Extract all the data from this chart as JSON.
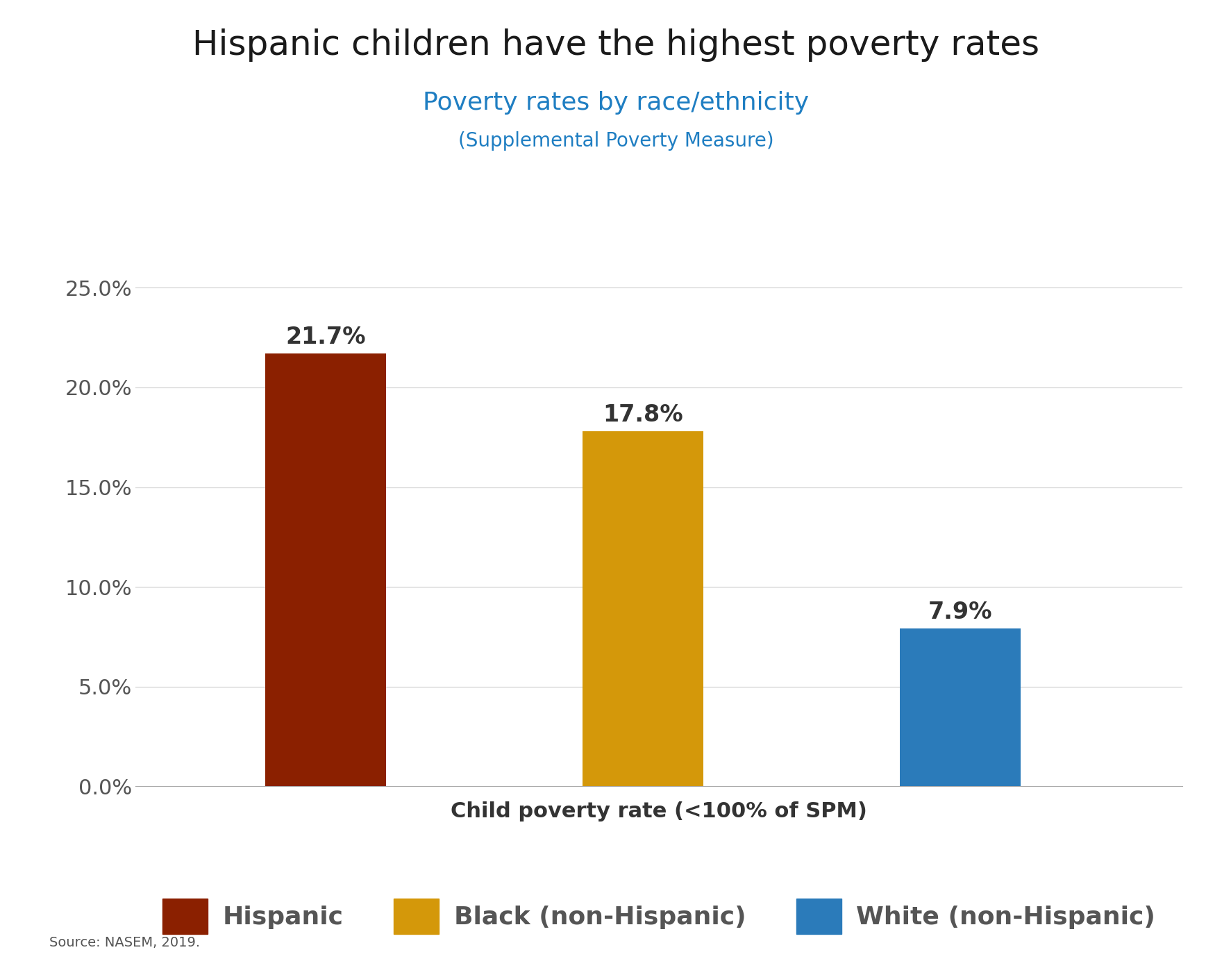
{
  "title": "Hispanic children have the highest poverty rates",
  "subtitle1": "Poverty rates by race/ethnicity",
  "subtitle2": "(Supplemental Poverty Measure)",
  "categories": [
    "Hispanic",
    "Black (non-Hispanic)",
    "White (non-Hispanic)"
  ],
  "values": [
    21.7,
    17.8,
    7.9
  ],
  "bar_colors": [
    "#8B2000",
    "#D4980A",
    "#2B7BBA"
  ],
  "bar_labels": [
    "21.7%",
    "17.8%",
    "7.9%"
  ],
  "xlabel": "Child poverty rate (<100% of SPM)",
  "ylim": [
    0,
    25
  ],
  "yticks": [
    0,
    5,
    10,
    15,
    20,
    25
  ],
  "ytick_labels": [
    "0.0%",
    "5.0%",
    "10.0%",
    "15.0%",
    "20.0%",
    "25.0%"
  ],
  "title_color": "#1A1A1A",
  "subtitle1_color": "#1F7EC2",
  "subtitle2_color": "#1F7EC2",
  "title_fontsize": 36,
  "subtitle1_fontsize": 26,
  "subtitle2_fontsize": 20,
  "bar_label_fontsize": 24,
  "tick_fontsize": 22,
  "xlabel_fontsize": 22,
  "legend_labels": [
    "Hispanic",
    "Black (non-Hispanic)",
    "White (non-Hispanic)"
  ],
  "legend_colors": [
    "#8B2000",
    "#D4980A",
    "#2B7BBA"
  ],
  "source_text": "Source: NASEM, 2019.",
  "background_color": "#FFFFFF",
  "grid_color": "#CCCCCC",
  "tick_label_color": "#555555",
  "xlabel_color": "#333333",
  "bar_width": 0.38,
  "x_positions": [
    1,
    2,
    3
  ]
}
